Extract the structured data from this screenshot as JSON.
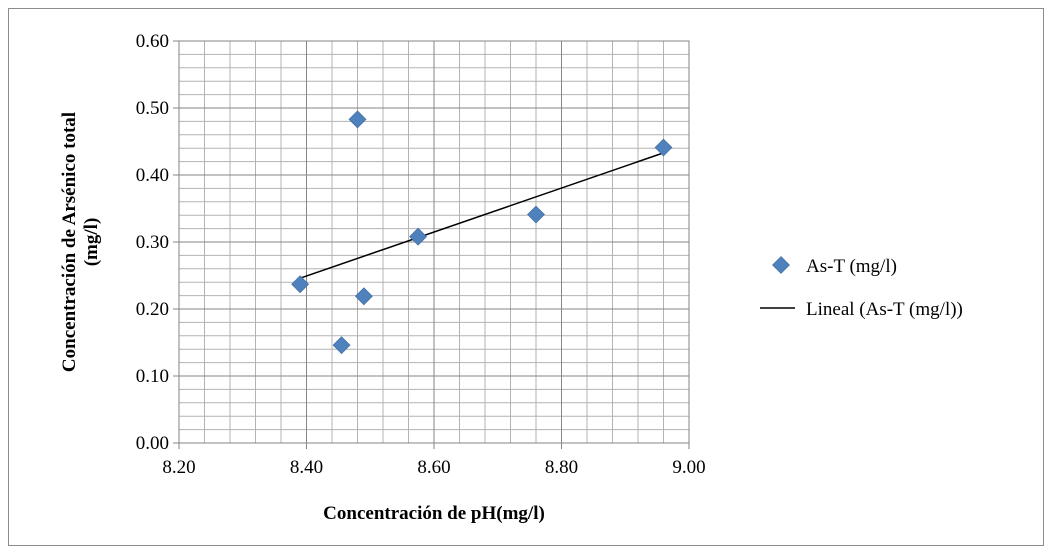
{
  "chart_data": {
    "type": "scatter",
    "xlabel": "Concentración de pH(mg/l)",
    "ylabel_line1": "Concentración de Arsénico total",
    "ylabel_line2": "(mg/l)",
    "xlim": [
      8.2,
      9.0
    ],
    "ylim": [
      0.0,
      0.6
    ],
    "x_ticks": [
      "8.20",
      "8.40",
      "8.60",
      "8.80",
      "9.00"
    ],
    "y_ticks": [
      "0.00",
      "0.10",
      "0.20",
      "0.30",
      "0.40",
      "0.50",
      "0.60"
    ],
    "grid": true,
    "series": [
      {
        "name": "As-T (mg/l)",
        "marker": "diamond",
        "color": "#4f81bd",
        "points": [
          {
            "x": 8.39,
            "y": 0.237
          },
          {
            "x": 8.455,
            "y": 0.146
          },
          {
            "x": 8.48,
            "y": 0.483
          },
          {
            "x": 8.49,
            "y": 0.219
          },
          {
            "x": 8.575,
            "y": 0.308
          },
          {
            "x": 8.76,
            "y": 0.341
          },
          {
            "x": 8.96,
            "y": 0.441
          }
        ]
      }
    ],
    "trendline": {
      "name": "Lineal (As-T (mg/l))",
      "type": "linear",
      "color": "#000000",
      "x_range": [
        8.39,
        8.96
      ],
      "y_range": [
        0.246,
        0.433
      ]
    },
    "legend_position": "right"
  }
}
